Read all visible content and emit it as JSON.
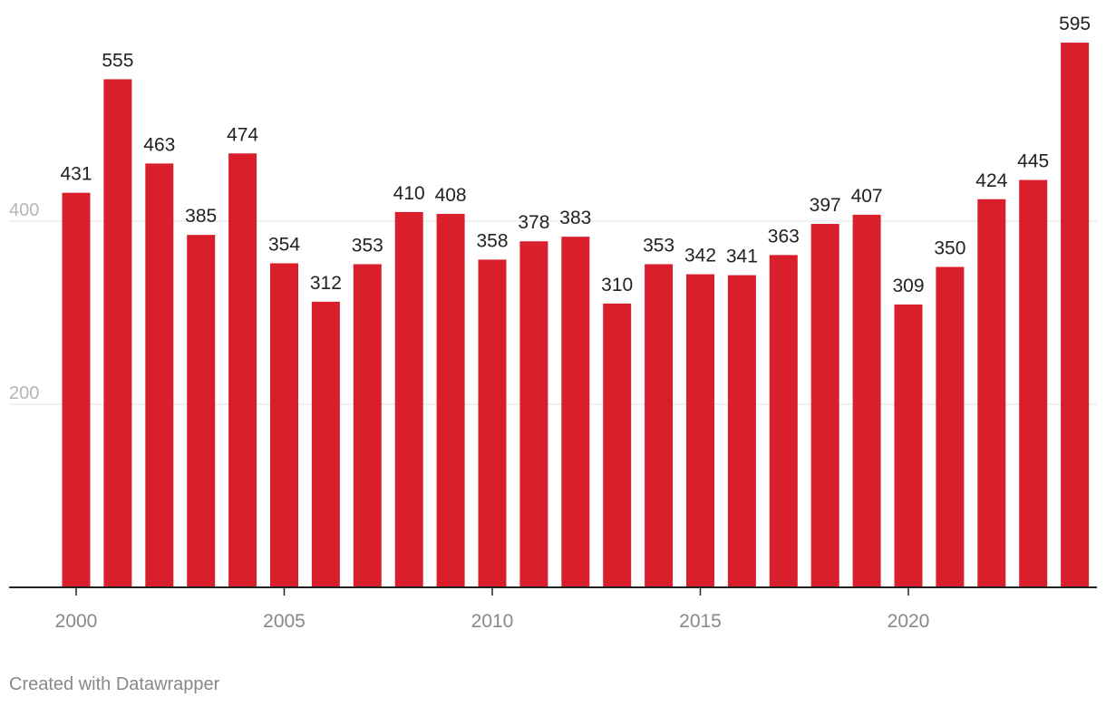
{
  "chart_data": {
    "type": "bar",
    "title": "",
    "xlabel": "",
    "ylabel": "",
    "ylim": [
      0,
      600
    ],
    "yticks": [
      200,
      400
    ],
    "xticks": [
      2000,
      2005,
      2010,
      2015,
      2020
    ],
    "grid": true,
    "categories": [
      2000,
      2001,
      2002,
      2003,
      2004,
      2005,
      2006,
      2007,
      2008,
      2009,
      2010,
      2011,
      2012,
      2013,
      2014,
      2015,
      2016,
      2017,
      2018,
      2019,
      2020,
      2021,
      2022,
      2023,
      2024
    ],
    "values": [
      431,
      555,
      463,
      385,
      474,
      354,
      312,
      353,
      410,
      408,
      358,
      378,
      383,
      310,
      353,
      342,
      341,
      363,
      397,
      407,
      309,
      350,
      424,
      445,
      595
    ],
    "bar_color": "#d91f2b"
  },
  "footer": {
    "credit": "Created with Datawrapper"
  }
}
